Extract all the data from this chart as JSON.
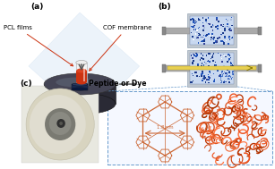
{
  "panel_a_label": "(a)",
  "panel_b_label": "(b)",
  "panel_c_label": "(c)",
  "label_pcl": "PCL films",
  "label_cof": "COF membrane",
  "label_peptide": "Peptide or Dye",
  "bg_color": "#ffffff",
  "cof_ring_color": "#cc6633",
  "label_fontsize": 5.0,
  "panel_label_fontsize": 6.5,
  "disk_dark": "#2a2a35",
  "disk_mid": "#454555",
  "disk_light": "#6a7585",
  "vial_white": "#f2f2f2",
  "vial_red": "#cc3311",
  "blue_dark": "#1a3a8a",
  "blue_med": "#2255bb",
  "blue_light": "#aabbdd",
  "pipe_gray": "#aaaaaa",
  "pipe_edge": "#888888",
  "arrow_col": "#555555",
  "dash_col": "#6699cc",
  "zoom_bg": "#f5f8ff"
}
